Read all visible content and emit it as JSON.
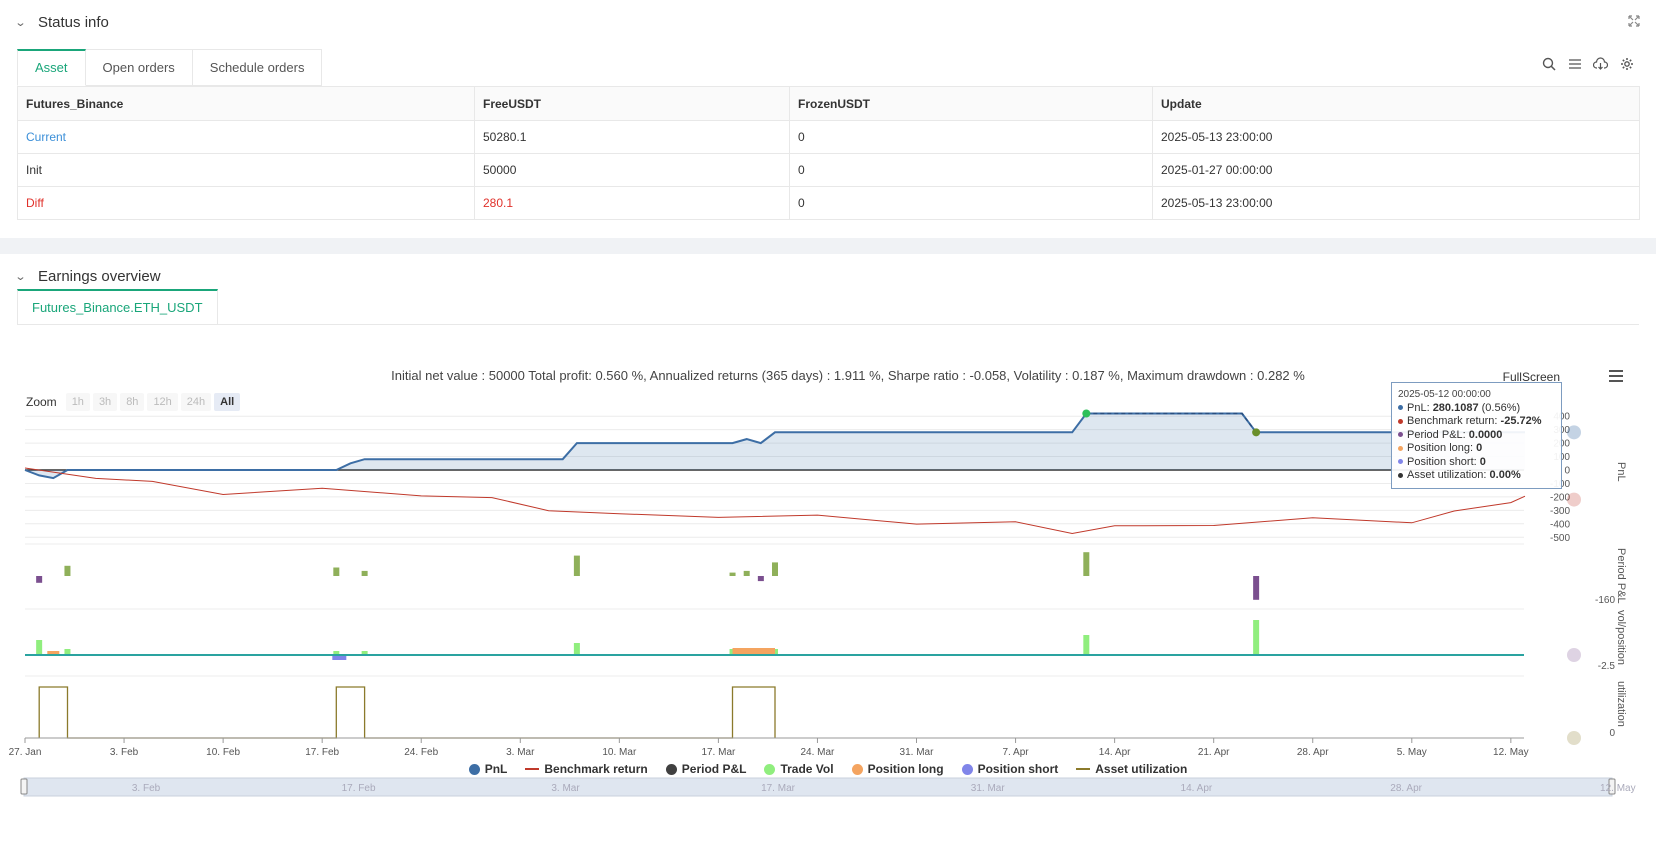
{
  "status": {
    "title": "Status info",
    "tabs": [
      "Asset",
      "Open orders",
      "Schedule orders"
    ],
    "table": {
      "headers": [
        "Futures_Binance",
        "FreeUSDT",
        "FrozenUSDT",
        "Update"
      ],
      "rows": [
        [
          "Current",
          "50280.1",
          "0",
          "2025-05-13 23:00:00"
        ],
        [
          "Init",
          "50000",
          "0",
          "2025-01-27 00:00:00"
        ],
        [
          "Diff",
          "280.1",
          "0",
          "2025-05-13 23:00:00"
        ]
      ]
    },
    "toolbar_icons": [
      "search-icon",
      "list-icon",
      "cloud-download-icon",
      "gear-icon"
    ]
  },
  "earnings": {
    "title": "Earnings overview",
    "tab": "Futures_Binance.ETH_USDT",
    "summary": "Initial net value : 50000 Total profit: 0.560 %, Annualized returns (365 days) : 1.911 %, Sharpe ratio : -0.058, Volatility : 0.187 %, Maximum drawdown : 0.282 %",
    "fullscreen": "FullScreen",
    "zoom_label": "Zoom",
    "zoom_buttons": [
      "1h",
      "3h",
      "8h",
      "12h",
      "24h",
      "All"
    ],
    "zoom_active": "All",
    "tooltip": {
      "date": "2025-05-12 00:00:00",
      "pnl_label": "PnL: ",
      "pnl_value": "280.1087",
      "pnl_pct": " (0.56%)",
      "bench_label": "Benchmark return: ",
      "bench_value": "-25.72%",
      "period_label": "Period P&L: ",
      "period_value": "0.0000",
      "long_label": "Position long: ",
      "long_value": "0",
      "short_label": "Position short: ",
      "short_value": "0",
      "util_label": "Asset utilization: ",
      "util_value": "0.00%"
    },
    "axis_titles": [
      "PnL",
      "Period P&L",
      "vol/position",
      "utilization"
    ],
    "x_ticks": [
      "27. Jan",
      "3. Feb",
      "10. Feb",
      "17. Feb",
      "24. Feb",
      "3. Mar",
      "10. Mar",
      "17. Mar",
      "24. Mar",
      "31. Mar",
      "7. Apr",
      "14. Apr",
      "21. Apr",
      "28. Apr",
      "5. May",
      "12. May"
    ],
    "pnl_y_ticks": [
      "400",
      "300",
      "200",
      "100",
      "0",
      "-100",
      "-200",
      "-300",
      "-400",
      "-500"
    ],
    "period_y_tick": "-160",
    "vol_y_tick": "-2.5",
    "util_y_tick": "0",
    "legend": [
      {
        "label": "PnL",
        "color": "#3d6ea5",
        "kind": "dot"
      },
      {
        "label": "Benchmark return",
        "color": "#c0392b",
        "kind": "line"
      },
      {
        "label": "Period P&L",
        "color": "#404040",
        "kind": "dot"
      },
      {
        "label": "Trade Vol",
        "color": "#90ee7e",
        "kind": "dot"
      },
      {
        "label": "Position long",
        "color": "#f4a460",
        "kind": "dot"
      },
      {
        "label": "Position short",
        "color": "#8085e9",
        "kind": "dot"
      },
      {
        "label": "Asset utilization",
        "color": "#8b7a2b",
        "kind": "line"
      }
    ],
    "navigator_ticks": [
      "3. Feb",
      "17. Feb",
      "3. Mar",
      "17. Mar",
      "31. Mar",
      "14. Apr",
      "28. Apr",
      "12. May"
    ]
  },
  "chart_data": {
    "type": "line",
    "x_range": [
      "2025-01-27",
      "2025-05-13"
    ],
    "pnl": {
      "x": [
        "2025-01-27",
        "2025-01-28",
        "2025-01-29",
        "2025-01-30",
        "2025-02-18",
        "2025-02-19",
        "2025-02-20",
        "2025-03-06",
        "2025-03-07",
        "2025-03-18",
        "2025-03-19",
        "2025-03-20",
        "2025-03-21",
        "2025-04-11",
        "2025-04-12",
        "2025-04-23",
        "2025-04-24",
        "2025-05-13"
      ],
      "y": [
        0,
        -40,
        -60,
        0,
        0,
        50,
        80,
        80,
        200,
        200,
        230,
        200,
        280,
        280,
        420,
        420,
        280,
        280
      ]
    },
    "benchmark": {
      "x": [
        "2025-01-27",
        "2025-02-01",
        "2025-02-05",
        "2025-02-10",
        "2025-02-17",
        "2025-02-24",
        "2025-03-01",
        "2025-03-05",
        "2025-03-10",
        "2025-03-17",
        "2025-03-24",
        "2025-03-31",
        "2025-04-07",
        "2025-04-11",
        "2025-04-14",
        "2025-04-21",
        "2025-04-28",
        "2025-05-05",
        "2025-05-08",
        "2025-05-12",
        "2025-05-13"
      ],
      "y": [
        0,
        -40,
        -100,
        -160,
        -150,
        -170,
        -220,
        -280,
        -340,
        -330,
        -350,
        -380,
        -400,
        -450,
        -430,
        -390,
        -370,
        -370,
        -320,
        -220,
        -210
      ]
    },
    "period_pnl": {
      "x": [
        "2025-01-28",
        "2025-01-30",
        "2025-02-18",
        "2025-02-20",
        "2025-03-07",
        "2025-03-18",
        "2025-03-19",
        "2025-03-20",
        "2025-03-21",
        "2025-04-12",
        "2025-04-24"
      ],
      "y": [
        -40,
        60,
        50,
        30,
        120,
        20,
        30,
        -30,
        80,
        140,
        -140
      ]
    },
    "trade_vol": {
      "x": [
        "2025-01-28",
        "2025-01-30",
        "2025-02-18",
        "2025-02-20",
        "2025-03-07",
        "2025-03-18",
        "2025-03-21",
        "2025-04-12",
        "2025-04-24"
      ],
      "y": [
        1.5,
        0.6,
        0.4,
        0.4,
        1.2,
        0.6,
        0.6,
        2.0,
        3.5
      ]
    },
    "position_long": {
      "x": [
        "2025-01-29",
        "2025-03-18"
      ],
      "y": [
        0.4,
        0.7
      ]
    },
    "position_short": {
      "x": [
        "2025-02-18"
      ],
      "y": [
        -0.5
      ]
    },
    "asset_utilization": {
      "x": [
        "2025-01-28",
        "2025-01-28",
        "2025-01-30",
        "2025-01-30",
        "2025-02-18",
        "2025-02-18",
        "2025-02-20",
        "2025-02-20",
        "2025-03-18",
        "2025-03-18",
        "2025-03-21",
        "2025-03-21"
      ],
      "y": [
        0,
        1,
        1,
        0,
        0,
        1,
        1,
        0,
        0,
        1,
        1,
        0
      ]
    }
  }
}
